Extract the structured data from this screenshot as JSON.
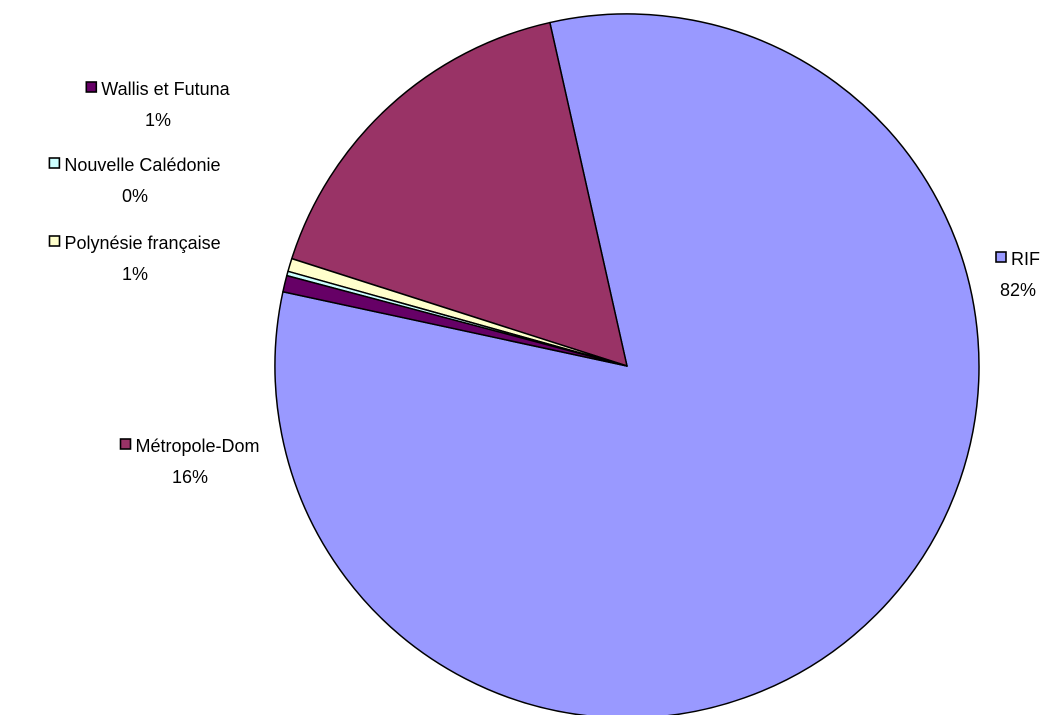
{
  "chart_data": {
    "type": "pie",
    "start_angle_deg": 167.82,
    "direction": "counterclockwise",
    "labels_show": [
      "category",
      "percent"
    ],
    "slices": [
      {
        "label": "RIF",
        "percent_label": "82%",
        "value": 81.9,
        "color": "#9999ff"
      },
      {
        "label": "Métropole-Dom",
        "percent_label": "16%",
        "value": 16.55,
        "color": "#993366"
      },
      {
        "label": "Polynésie française",
        "percent_label": "1%",
        "value": 0.6,
        "color": "#ffffcc"
      },
      {
        "label": "Nouvelle Calédonie",
        "percent_label": "0%",
        "value": 0.2,
        "color": "#ccffff"
      },
      {
        "label": "Wallis et Futuna",
        "percent_label": "1%",
        "value": 0.75,
        "color": "#660066"
      }
    ]
  }
}
